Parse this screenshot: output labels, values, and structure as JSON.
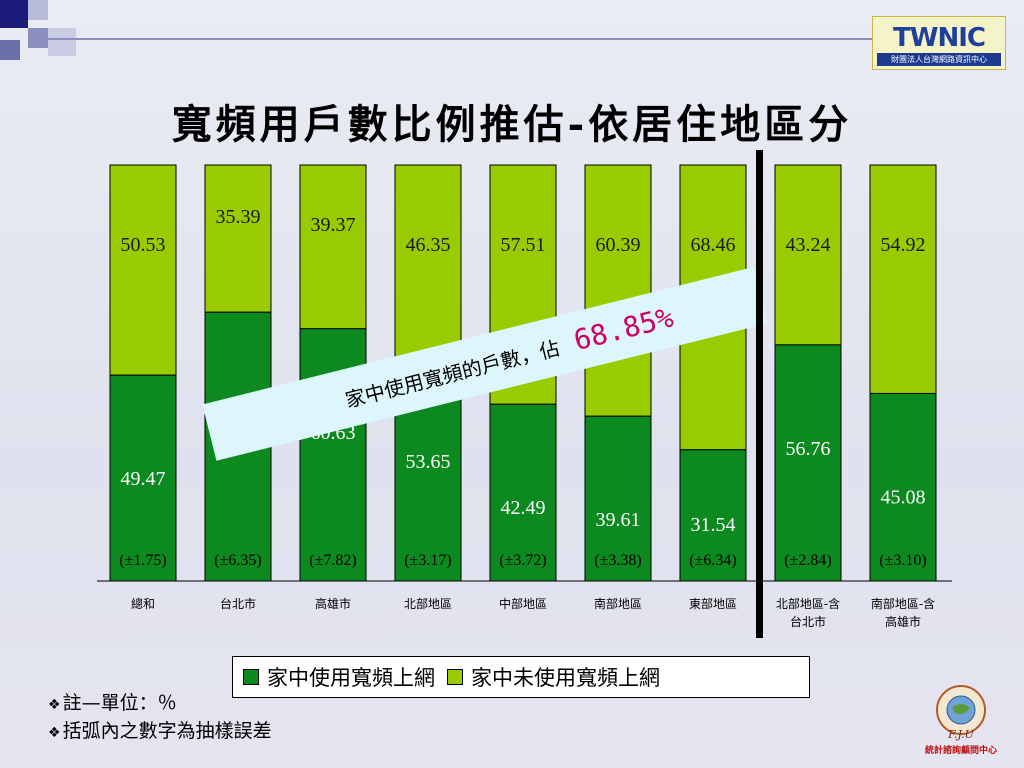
{
  "slide": {
    "title": "寬頻用戶數比例推估-依居住地區分",
    "logo": {
      "text": "TWNIC",
      "subtitle": "財團法人台灣網路資訊中心"
    },
    "notes": [
      "註—單位：％",
      "括弧內之數字為抽樣誤差"
    ],
    "corner_logo": {
      "text": "F.J.U",
      "caption": "統計諮詢顧問中心"
    }
  },
  "callout": {
    "prefix": "家中使用寬頻的戶數，佔",
    "value": "68.85%",
    "value_color": "#cc0066"
  },
  "colors": {
    "used": "#0d8a1f",
    "unused": "#99cc00",
    "callout_bg": "#ddf6fb"
  },
  "chart_data": {
    "type": "bar",
    "stacked": true,
    "categories": [
      "總和",
      "台北市",
      "高雄市",
      "北部地區",
      "中部地區",
      "南部地區",
      "東部地區",
      "北部地區-含台北市",
      "南部地區-含高雄市"
    ],
    "series": [
      {
        "name": "家中使用寬頻上網",
        "values": [
          49.47,
          64.61,
          60.63,
          53.65,
          42.49,
          39.61,
          31.54,
          56.76,
          45.08
        ]
      },
      {
        "name": "家中未使用寬頻上網",
        "values": [
          50.53,
          35.39,
          39.37,
          46.35,
          57.51,
          60.39,
          68.46,
          43.24,
          54.92
        ]
      }
    ],
    "errors": [
      "(±1.75)",
      "(±6.35)",
      "(±7.82)",
      "(±3.17)",
      "(±3.72)",
      "(±3.38)",
      "(±6.34)",
      "(±2.84)",
      "(±3.10)"
    ],
    "ylim": [
      0,
      100
    ],
    "legend": "bottom"
  }
}
